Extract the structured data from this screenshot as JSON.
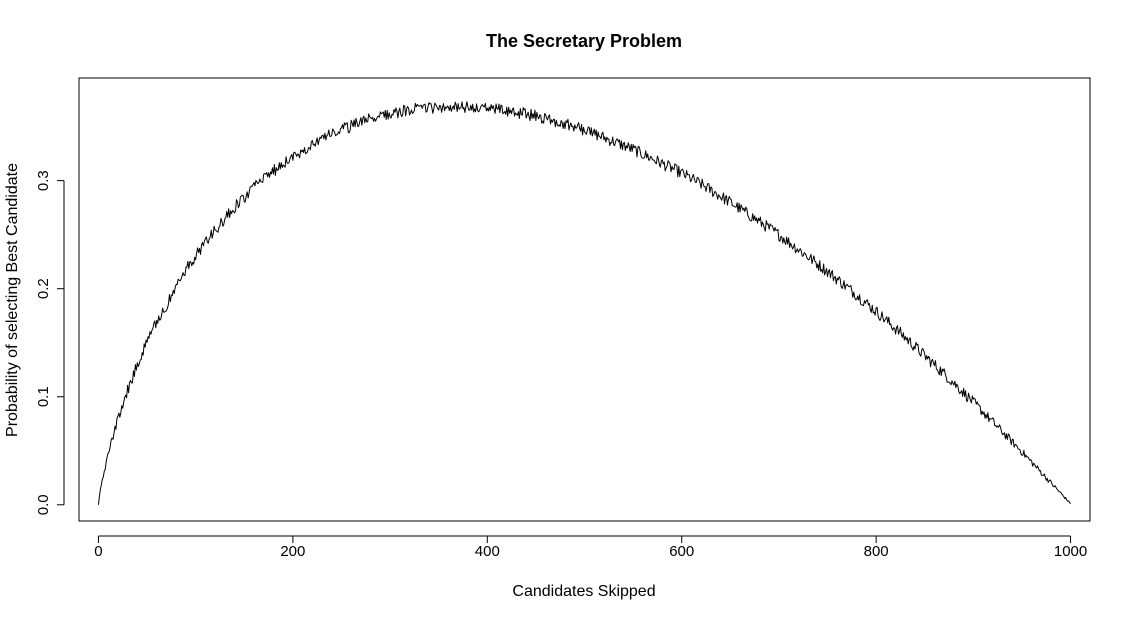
{
  "chart_data": {
    "type": "line",
    "title": "The Secretary Problem",
    "xlabel": "Candidates Skipped",
    "ylabel": "Probability of selecting Best Candidate",
    "xlim": [
      -20,
      1020
    ],
    "ylim": [
      -0.015,
      0.395
    ],
    "x_ticks": [
      0,
      200,
      400,
      600,
      800,
      1000
    ],
    "x_tick_labels": [
      "0",
      "200",
      "400",
      "600",
      "800",
      "1000"
    ],
    "y_ticks": [
      0.0,
      0.1,
      0.2,
      0.3
    ],
    "y_tick_labels": [
      "0.0",
      "0.1",
      "0.2",
      "0.3"
    ],
    "grid": false,
    "legend": "none",
    "line_color": "#000000",
    "series": [
      {
        "x": [
          0,
          2,
          5,
          10,
          15,
          20,
          25,
          30,
          40,
          50,
          60,
          70,
          80,
          90,
          100,
          120,
          140,
          160,
          180,
          200,
          225,
          250,
          275,
          300,
          325,
          350,
          368,
          400,
          425,
          450,
          475,
          500,
          525,
          550,
          575,
          600,
          625,
          650,
          675,
          700,
          725,
          750,
          775,
          800,
          825,
          850,
          875,
          900,
          925,
          950,
          975,
          1000
        ],
        "values": [
          0.0,
          0.014,
          0.027,
          0.047,
          0.064,
          0.079,
          0.093,
          0.106,
          0.129,
          0.15,
          0.169,
          0.185,
          0.201,
          0.217,
          0.231,
          0.254,
          0.275,
          0.294,
          0.309,
          0.322,
          0.337,
          0.347,
          0.356,
          0.362,
          0.366,
          0.368,
          0.368,
          0.367,
          0.364,
          0.36,
          0.354,
          0.347,
          0.338,
          0.329,
          0.318,
          0.307,
          0.294,
          0.28,
          0.265,
          0.25,
          0.233,
          0.216,
          0.198,
          0.179,
          0.159,
          0.138,
          0.117,
          0.095,
          0.072,
          0.049,
          0.025,
          0.001
        ]
      }
    ]
  }
}
